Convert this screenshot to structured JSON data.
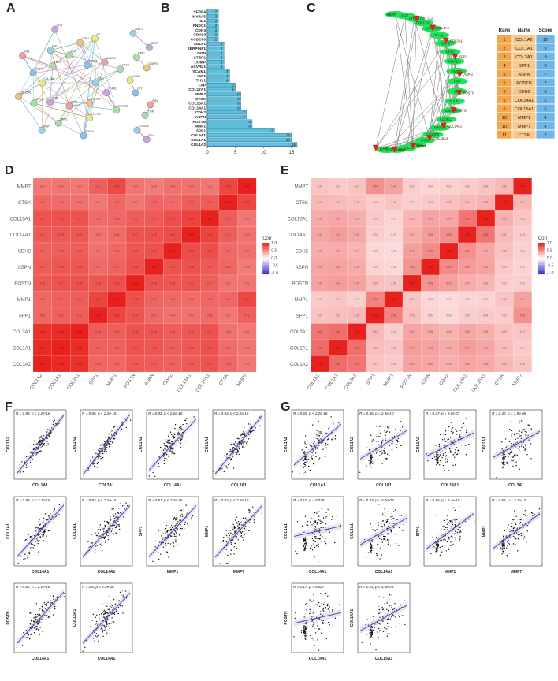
{
  "panel_labels": [
    "A",
    "B",
    "C",
    "D",
    "E",
    "F",
    "G"
  ],
  "colors": {
    "bar": "#5bc0de",
    "bar_stroke": "#2a6f8f",
    "node_green": "#22e05a",
    "node_red": "#e02020",
    "edge": "#777777",
    "heat_hi": "#e8211c",
    "heat_lo": "#ffffff",
    "heat_neg": "#3a34c8",
    "scatter_pt": "#111111",
    "scatter_line": "#3b3bd6",
    "table_rank_bg": "#f3a64a",
    "table_name_bg": "#f8c98a",
    "table_score_bg": "#6fb6e8"
  },
  "panel_a": {
    "node_labels": [
      "CDH2",
      "VCAM1",
      "COL1A2",
      "COL3A1",
      "COL1A1",
      "POSTN",
      "SPP1",
      "MMP1",
      "MMP7",
      "CTSK",
      "ASPN",
      "COL15A1",
      "COL14A1",
      "SFRP4",
      "IGF1",
      "THY1",
      "FAP",
      "OGN",
      "DCN",
      "LTBP1",
      "ID1",
      "SMAD6",
      "ACVRL1",
      "FMOD",
      "SULF1",
      "SERPINF1",
      "NPR1",
      "CRISP3",
      "MXRA5",
      "DPT",
      "FNDC1",
      "COMP",
      "CCDC80",
      "PTN"
    ]
  },
  "chart_data": [
    {
      "type": "bar",
      "orientation": "horizontal",
      "categories": [
        "SFRP4",
        "MXRA5",
        "ID1",
        "FNDC1",
        "CDH3",
        "CDH13",
        "CCDC80",
        "SULF1",
        "SERPINF1",
        "OGN",
        "LTBP1",
        "COMP",
        "ACVRL1",
        "VCAM1",
        "IGF1",
        "THY1",
        "FAP",
        "COL17A1",
        "MMP7",
        "CTSK",
        "COL15A1",
        "COL14A1",
        "CDH2",
        "ASPN",
        "POSTN",
        "MMP1",
        "SPP1",
        "COL5A1",
        "COL1A1",
        "COL1A2"
      ],
      "values": [
        2,
        2,
        2,
        2,
        2,
        2,
        2,
        3,
        3,
        3,
        3,
        3,
        3,
        4,
        4,
        4,
        5,
        5,
        6,
        6,
        6,
        6,
        7,
        7,
        8,
        8,
        12,
        15,
        15,
        16
      ],
      "xticks": [
        0,
        5,
        10,
        15
      ],
      "xlim": [
        0,
        16
      ]
    },
    {
      "type": "table",
      "columns": [
        "Rank",
        "Name",
        "Score"
      ],
      "rows": [
        [
          "1",
          "COL1A2",
          "12"
        ],
        [
          "2",
          "COL1A1",
          "9"
        ],
        [
          "2",
          "COL3A1",
          "9"
        ],
        [
          "4",
          "SPP1",
          "8"
        ],
        [
          "5",
          "ASPN",
          "7"
        ],
        [
          "5",
          "POSTN",
          "7"
        ],
        [
          "6",
          "CDH2",
          "6"
        ],
        [
          "6",
          "COL14A1",
          "6"
        ],
        [
          "6",
          "COL15A1",
          "6"
        ],
        [
          "10",
          "MMP1",
          "4"
        ],
        [
          "10",
          "MMP7",
          "4"
        ],
        [
          "11",
          "CTSK",
          "2"
        ]
      ]
    },
    {
      "type": "heatmap",
      "rows": [
        "MMP7",
        "CTSK",
        "COL15A1",
        "COL14A1",
        "CDH2",
        "ASPN",
        "POSTN",
        "MMP1",
        "SPP1",
        "COL3A1",
        "COL1A1",
        "COL1A2"
      ],
      "columns": [
        "COL1A2",
        "COL1A1",
        "COL3A1",
        "SPP1",
        "MMP1",
        "POSTN",
        "ASPN",
        "CDH2",
        "COL14A1",
        "COL15A1",
        "CTSK",
        "MMP7"
      ],
      "legend_title": "Corr",
      "legend_ticks": [
        "1.0",
        "0.5",
        "0.0",
        "-0.5",
        "-1.0"
      ],
      "values": [
        [
          0.61,
          0.62,
          0.61,
          0.71,
          0.82,
          0.62,
          0.59,
          0.64,
          0.63,
          0.61,
          0.83,
          1.0
        ],
        [
          0.68,
          0.66,
          0.64,
          0.61,
          0.68,
          0.62,
          0.69,
          0.67,
          0.72,
          0.73,
          1.0,
          0.83
        ],
        [
          0.77,
          0.78,
          0.77,
          0.66,
          0.68,
          0.72,
          0.74,
          0.79,
          0.84,
          1.0,
          0.73,
          0.61
        ],
        [
          0.74,
          0.75,
          0.75,
          0.63,
          0.66,
          0.77,
          0.78,
          0.8,
          1.0,
          0.84,
          0.72,
          0.63
        ],
        [
          0.71,
          0.72,
          0.73,
          0.64,
          0.68,
          0.76,
          0.78,
          1.0,
          0.8,
          0.79,
          0.67,
          0.64
        ],
        [
          0.73,
          0.76,
          0.76,
          0.67,
          0.7,
          0.78,
          1.0,
          0.78,
          0.78,
          0.74,
          0.69,
          0.59
        ],
        [
          0.75,
          0.77,
          0.78,
          0.76,
          0.79,
          1.0,
          0.78,
          0.76,
          0.77,
          0.72,
          0.62,
          0.62
        ],
        [
          0.68,
          0.71,
          0.72,
          0.84,
          1.0,
          0.79,
          0.7,
          0.68,
          0.66,
          0.68,
          0.68,
          0.82
        ],
        [
          0.69,
          0.71,
          0.73,
          1.0,
          0.84,
          0.76,
          0.67,
          0.64,
          0.63,
          0.66,
          0.61,
          0.71
        ],
        [
          0.93,
          0.95,
          1.0,
          0.73,
          0.72,
          0.78,
          0.76,
          0.73,
          0.75,
          0.77,
          0.64,
          0.61
        ],
        [
          0.96,
          1.0,
          0.95,
          0.71,
          0.71,
          0.77,
          0.76,
          0.72,
          0.75,
          0.78,
          0.66,
          0.62
        ],
        [
          1.0,
          0.96,
          0.93,
          0.69,
          0.68,
          0.75,
          0.73,
          0.71,
          0.74,
          0.77,
          0.68,
          0.61
        ]
      ]
    },
    {
      "type": "heatmap",
      "rows": [
        "MMP7",
        "CTSK",
        "COL15A1",
        "COL14A1",
        "CDH2",
        "ASPN",
        "POSTN",
        "MMP1",
        "SPP1",
        "COL3A1",
        "COL1A1",
        "COL1A2"
      ],
      "columns": [
        "COL1A2",
        "COL1A1",
        "COL3A1",
        "SPP1",
        "MMP1",
        "POSTN",
        "ASPN",
        "CDH2",
        "COL14A1",
        "COL15A1",
        "CTSK",
        "MMP7"
      ],
      "legend_title": "Corr",
      "legend_ticks": [
        "1.0",
        "0.5",
        "0.0",
        "-0.5",
        "-1.0"
      ],
      "values": [
        [
          0.26,
          0.24,
          0.27,
          0.5,
          0.42,
          0.22,
          0.19,
          0.21,
          0.23,
          0.26,
          0.32,
          1.0
        ],
        [
          0.32,
          0.3,
          0.28,
          0.23,
          0.26,
          0.22,
          0.24,
          0.28,
          0.31,
          0.35,
          1.0,
          0.32
        ],
        [
          0.38,
          0.4,
          0.36,
          0.24,
          0.2,
          0.33,
          0.41,
          0.4,
          0.62,
          1.0,
          0.35,
          0.26
        ],
        [
          0.4,
          0.44,
          0.39,
          0.22,
          0.19,
          0.37,
          0.45,
          0.5,
          1.0,
          0.62,
          0.31,
          0.23
        ],
        [
          0.36,
          0.38,
          0.34,
          0.18,
          0.16,
          0.43,
          0.52,
          1.0,
          0.5,
          0.4,
          0.28,
          0.21
        ],
        [
          0.4,
          0.42,
          0.38,
          0.2,
          0.18,
          0.48,
          1.0,
          0.52,
          0.45,
          0.41,
          0.24,
          0.19
        ],
        [
          0.42,
          0.44,
          0.41,
          0.29,
          0.26,
          1.0,
          0.48,
          0.43,
          0.37,
          0.33,
          0.22,
          0.22
        ],
        [
          0.24,
          0.26,
          0.22,
          0.56,
          1.0,
          0.26,
          0.18,
          0.16,
          0.19,
          0.2,
          0.26,
          0.42
        ],
        [
          0.27,
          0.29,
          0.31,
          1.0,
          0.56,
          0.29,
          0.2,
          0.18,
          0.22,
          0.24,
          0.23,
          0.5
        ],
        [
          0.62,
          0.65,
          1.0,
          0.31,
          0.22,
          0.41,
          0.38,
          0.34,
          0.39,
          0.36,
          0.28,
          0.27
        ],
        [
          0.66,
          1.0,
          0.65,
          0.29,
          0.26,
          0.44,
          0.42,
          0.38,
          0.44,
          0.4,
          0.3,
          0.24
        ],
        [
          1.0,
          0.66,
          0.62,
          0.27,
          0.24,
          0.42,
          0.4,
          0.36,
          0.4,
          0.38,
          0.32,
          0.26
        ]
      ]
    },
    {
      "type": "scatter",
      "panel": "F",
      "subplots": [
        {
          "title": "R = 0.93, p < 2.2e-16",
          "xlabel": "COL1A1",
          "ylabel": "COL1A2",
          "r": 0.93
        },
        {
          "title": "R = 0.96, p < 2.2e-16",
          "xlabel": "COL3A1",
          "ylabel": "COL1A2",
          "r": 0.96
        },
        {
          "title": "R = 0.81, p < 2.2e-16",
          "xlabel": "COL14A1",
          "ylabel": "COL1A2",
          "r": 0.81
        },
        {
          "title": "R = 0.93, p < 2.2e-16",
          "xlabel": "COL3A1",
          "ylabel": "COL1A1",
          "r": 0.93
        },
        {
          "title": "R = 0.83, p < 2.2e-16",
          "xlabel": "COL14A1",
          "ylabel": "COL1A1",
          "r": 0.83
        },
        {
          "title": "R = 0.82, p < 2.2e-16",
          "xlabel": "COL14A1",
          "ylabel": "COL3A1",
          "r": 0.82
        },
        {
          "title": "R = 0.81, p < 2.2e-16",
          "xlabel": "MMP1",
          "ylabel": "SPP1",
          "r": 0.81
        },
        {
          "title": "R = 0.82, p < 2.2e-16",
          "xlabel": "MMP7",
          "ylabel": "MMP1",
          "r": 0.82
        },
        {
          "title": "R = 0.82, p < 2.2e-16",
          "xlabel": "COL14A1",
          "ylabel": "POSTN",
          "r": 0.82
        },
        {
          "title": "R = 0.8, p < 2.2e-16",
          "xlabel": "COL14A1",
          "ylabel": "COL15A1",
          "r": 0.8
        }
      ]
    },
    {
      "type": "scatter",
      "panel": "G",
      "subplots": [
        {
          "title": "R = 0.65, p < 2.2e-16",
          "xlabel": "COL1A1",
          "ylabel": "COL1A2",
          "r": 0.65
        },
        {
          "title": "R = 0.46, p = 2.9e-10",
          "xlabel": "COL3A1",
          "ylabel": "COL1A2",
          "r": 0.46
        },
        {
          "title": "R = 0.37, p = 9.5e-07",
          "xlabel": "COL14A1",
          "ylabel": "COL1A2",
          "r": 0.37
        },
        {
          "title": "R = 0.42, p = 1.5e-08",
          "xlabel": "COL3A1",
          "ylabel": "COL1A1",
          "r": 0.42
        },
        {
          "title": "R = 0.16, p = 0.039",
          "xlabel": "COL14A1",
          "ylabel": "COL1A1",
          "r": 0.16
        },
        {
          "title": "R = 0.43, p = 3.4e-09",
          "xlabel": "COL14A1",
          "ylabel": "COL3A1",
          "r": 0.43
        },
        {
          "title": "R = 0.56, p = 2.4e-15",
          "xlabel": "MMP1",
          "ylabel": "SPP1",
          "r": 0.56
        },
        {
          "title": "R = 0.56, p = 2.1e-15",
          "xlabel": "MMP7",
          "ylabel": "MMP1",
          "r": 0.56
        },
        {
          "title": "R = 0.17, p = 0.027",
          "xlabel": "COL14A1",
          "ylabel": "POSTN",
          "r": 0.17
        },
        {
          "title": "R = 0.41, p = 3.5e-08",
          "xlabel": "COL15A1",
          "ylabel": "COL14A1",
          "r": 0.41
        }
      ]
    }
  ],
  "panel_c": {
    "green_nodes": [
      "SERPINF1",
      "IGF1",
      "LTBP1",
      "COL17A1",
      "VCAM1",
      "THY1",
      "CDH3",
      "NPR1",
      "CDH13",
      "FMOD",
      "FAP",
      "ID1",
      "SULF1",
      "SMAD6",
      "ACVRL1",
      "MXRA5",
      "CRISP3",
      "OGN",
      "SFRP4",
      "FNDC1",
      "COMP",
      "CCDC80"
    ],
    "red_nodes": [
      "COL1A2",
      "COL1A1",
      "COL3A1",
      "SPP1",
      "ASPN",
      "POSTN",
      "CDH2",
      "COL14A1",
      "COL15A1",
      "MMP1",
      "MMP7",
      "CTSK"
    ]
  }
}
